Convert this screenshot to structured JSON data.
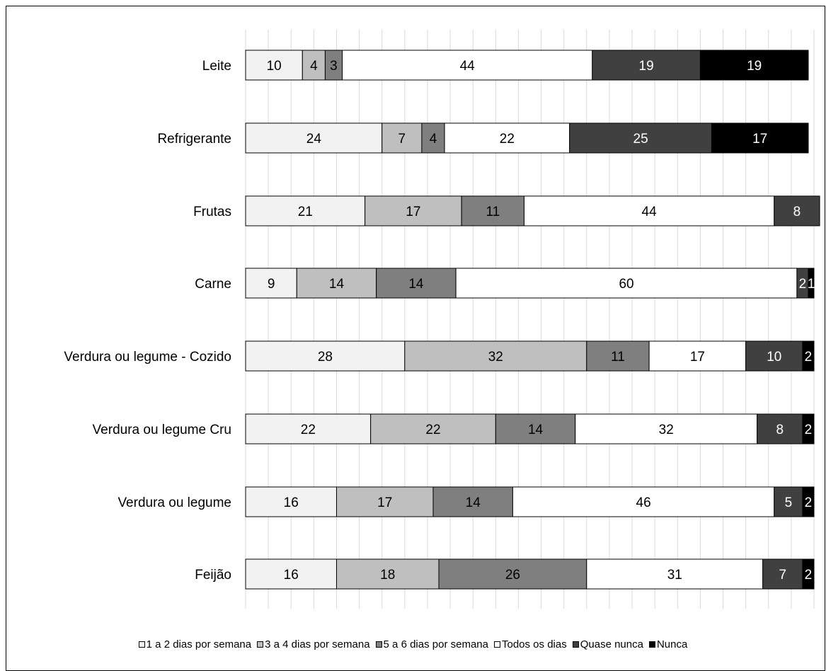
{
  "chart_data": {
    "type": "bar",
    "orientation": "horizontal",
    "stacked": true,
    "categories": [
      "Leite",
      "Refrigerante",
      "Frutas",
      "Carne",
      "Verdura ou legume - Cozido",
      "Verdura ou legume Cru",
      "Verdura ou legume",
      "Feijão"
    ],
    "series": [
      {
        "name": "1 a 2 dias por semana",
        "color": "#f2f2f2",
        "label_color": "#000000",
        "values": [
          10,
          24,
          21,
          9,
          28,
          22,
          16,
          16
        ]
      },
      {
        "name": "3 a 4 dias por semana",
        "color": "#bfbfbf",
        "label_color": "#000000",
        "values": [
          4,
          7,
          17,
          14,
          32,
          22,
          17,
          18
        ]
      },
      {
        "name": "5 a 6 dias por semana",
        "color": "#7f7f7f",
        "label_color": "#000000",
        "values": [
          3,
          4,
          11,
          14,
          11,
          14,
          14,
          26
        ]
      },
      {
        "name": "Todos os dias",
        "color": "#ffffff",
        "label_color": "#000000",
        "values": [
          44,
          22,
          44,
          60,
          17,
          32,
          46,
          31
        ]
      },
      {
        "name": "Quase nunca",
        "color": "#404040",
        "label_color": "#ffffff",
        "values": [
          19,
          25,
          8,
          2,
          10,
          8,
          5,
          7
        ]
      },
      {
        "name": "Nunca",
        "color": "#000000",
        "label_color": "#ffffff",
        "values": [
          19,
          17,
          null,
          1,
          2,
          2,
          2,
          2
        ]
      }
    ],
    "xlim": [
      0,
      100
    ],
    "grid": true,
    "legend_position": "bottom"
  }
}
